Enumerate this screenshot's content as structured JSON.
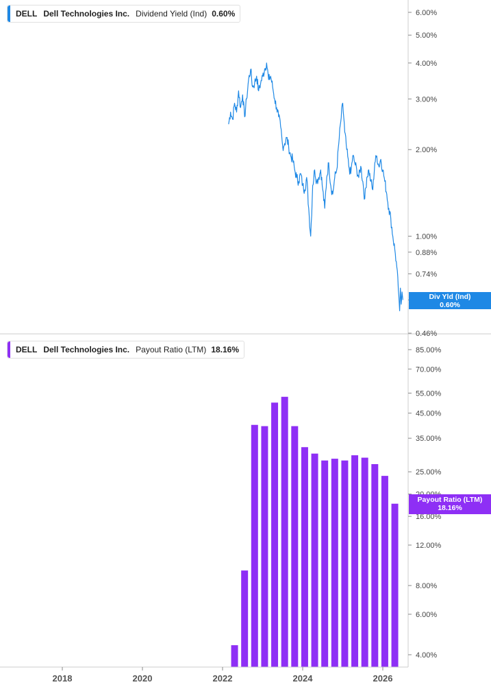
{
  "colors": {
    "yield": "#1e88e5",
    "payout": "#8e2ff5",
    "axis": "#cccccc"
  },
  "legends": [
    {
      "ticker": "DELL",
      "name": "Dell Technologies Inc.",
      "metric": "Dividend Yield (Ind)",
      "value": "0.60%"
    },
    {
      "ticker": "DELL",
      "name": "Dell Technologies Inc.",
      "metric": "Payout Ratio (LTM)",
      "value": "18.16%"
    }
  ],
  "flags": [
    {
      "line1": "Div Yld (Ind)",
      "line2": "0.60%"
    },
    {
      "line1": "Payout Ratio (LTM)",
      "line2": "18.16%"
    }
  ],
  "chart_data": [
    {
      "type": "line",
      "title": "Dividend Yield (Ind)",
      "yscale": "log",
      "ylim": [
        0.46,
        6.6
      ],
      "yticks": [
        6.0,
        5.0,
        4.0,
        3.0,
        2.0,
        1.0,
        0.88,
        0.74,
        0.6,
        0.46
      ],
      "ytick_labels": [
        "6.00%",
        "5.00%",
        "4.00%",
        "3.00%",
        "2.00%",
        "1.00%",
        "0.88%",
        "0.74%",
        "0.60%",
        "0.46%"
      ],
      "series": [
        {
          "name": "Div Yld (Ind)",
          "x": [
            2022.15,
            2022.2,
            2022.25,
            2022.3,
            2022.35,
            2022.4,
            2022.45,
            2022.5,
            2022.55,
            2022.6,
            2022.65,
            2022.7,
            2022.75,
            2022.8,
            2022.85,
            2022.9,
            2022.95,
            2023.0,
            2023.05,
            2023.1,
            2023.15,
            2023.2,
            2023.25,
            2023.3,
            2023.35,
            2023.4,
            2023.45,
            2023.5,
            2023.55,
            2023.6,
            2023.65,
            2023.7,
            2023.75,
            2023.8,
            2023.85,
            2023.9,
            2023.95,
            2024.0,
            2024.05,
            2024.1,
            2024.15,
            2024.2,
            2024.25,
            2024.3,
            2024.35,
            2024.4,
            2024.45,
            2024.5,
            2024.55,
            2024.6,
            2024.65,
            2024.7,
            2024.75,
            2024.8,
            2024.85,
            2024.9,
            2024.95,
            2025.0,
            2025.05,
            2025.1,
            2025.15,
            2025.2,
            2025.25,
            2025.3,
            2025.35,
            2025.4,
            2025.45,
            2025.5,
            2025.55,
            2025.6,
            2025.65,
            2025.7,
            2025.75,
            2025.8,
            2025.85,
            2025.9,
            2025.95,
            2026.0,
            2026.05,
            2026.1,
            2026.15,
            2026.2,
            2026.25,
            2026.3,
            2026.35,
            2026.4,
            2026.42,
            2026.44,
            2026.46,
            2026.48,
            2026.5
          ],
          "values": [
            2.45,
            2.7,
            2.55,
            2.9,
            2.7,
            3.2,
            2.8,
            3.1,
            2.6,
            3.0,
            3.5,
            3.8,
            3.3,
            3.4,
            3.6,
            3.2,
            3.4,
            3.6,
            3.8,
            4.0,
            3.5,
            3.6,
            3.3,
            3.0,
            2.8,
            2.6,
            2.4,
            2.05,
            2.1,
            2.2,
            2.05,
            1.9,
            1.85,
            1.7,
            1.6,
            1.55,
            1.65,
            1.5,
            1.45,
            1.6,
            1.25,
            1.0,
            1.5,
            1.7,
            1.55,
            1.6,
            1.7,
            1.45,
            1.25,
            1.6,
            1.8,
            1.5,
            1.4,
            1.6,
            1.7,
            2.1,
            2.5,
            2.9,
            2.3,
            2.0,
            1.75,
            1.65,
            1.9,
            1.8,
            1.7,
            1.6,
            1.75,
            1.55,
            1.35,
            1.6,
            1.7,
            1.55,
            1.45,
            1.8,
            1.9,
            1.75,
            1.85,
            1.7,
            1.55,
            1.4,
            1.25,
            1.15,
            1.0,
            0.9,
            0.78,
            0.62,
            0.55,
            0.66,
            0.58,
            0.64,
            0.6
          ]
        }
      ]
    },
    {
      "type": "bar",
      "title": "Payout Ratio (LTM)",
      "yscale": "log",
      "ylim": [
        3.7,
        90
      ],
      "yticks": [
        85.0,
        70.0,
        55.0,
        45.0,
        35.0,
        25.0,
        20.0,
        16.0,
        12.0,
        8.0,
        6.0,
        4.0
      ],
      "ytick_labels": [
        "85.00%",
        "70.00%",
        "55.00%",
        "45.00%",
        "35.00%",
        "25.00%",
        "20.00%",
        "16.00%",
        "12.00%",
        "8.00%",
        "6.00%",
        "4.00%"
      ],
      "xlim": [
        2016.75,
        2026.9
      ],
      "xticks": [
        2018,
        2020,
        2022,
        2024,
        2026
      ],
      "xtick_labels": [
        "2018",
        "2020",
        "2022",
        "2024",
        "2026"
      ],
      "series": [
        {
          "name": "Payout Ratio (LTM)",
          "x": [
            2022.3,
            2022.55,
            2022.8,
            2023.05,
            2023.3,
            2023.55,
            2023.8,
            2024.05,
            2024.3,
            2024.55,
            2024.8,
            2025.05,
            2025.3,
            2025.55,
            2025.8,
            2026.05,
            2026.3
          ],
          "values": [
            4.4,
            9.3,
            40.0,
            39.5,
            50.0,
            53.0,
            39.5,
            32.0,
            30.0,
            28.0,
            28.5,
            28.0,
            29.5,
            28.8,
            27.0,
            24.0,
            18.16
          ]
        }
      ]
    }
  ]
}
